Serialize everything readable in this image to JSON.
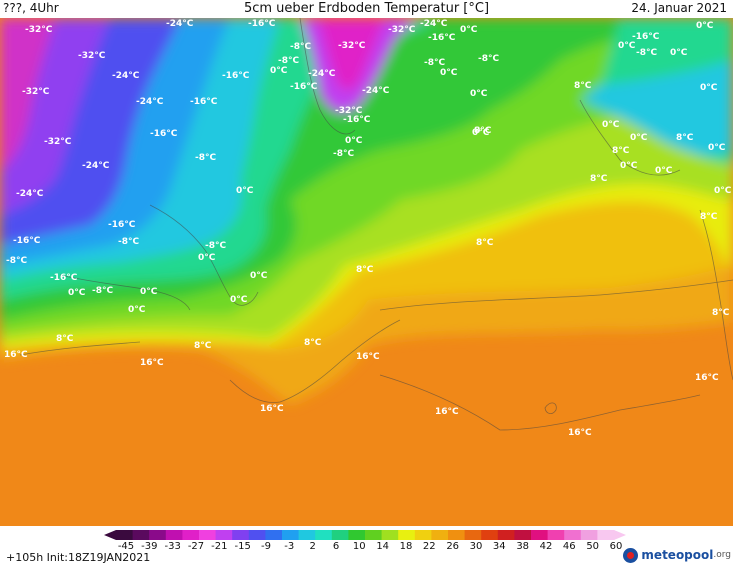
{
  "header": {
    "left": "???, 4Uhr",
    "title": "5cm ueber Erdboden Temperatur [°C]",
    "right": "24. Januar 2021"
  },
  "map_labels": {
    "m32": "-32°C",
    "m24": "-24°C",
    "m16": "-16°C",
    "m8": "-8°C",
    "z0": "0°C",
    "p8": "8°C",
    "p16": "16°C"
  },
  "colorbar": {
    "ticks": [
      "-45",
      "-39",
      "-33",
      "-27",
      "-21",
      "-15",
      "-9",
      "-3",
      "2",
      "6",
      "10",
      "14",
      "18",
      "22",
      "26",
      "30",
      "34",
      "38",
      "42",
      "46",
      "50",
      "60"
    ],
    "colors": [
      "#3a0a3e",
      "#5a0a5e",
      "#8a0a8a",
      "#c010b0",
      "#e020c8",
      "#f040e0",
      "#c040f0",
      "#8040f0",
      "#5050f0",
      "#3070f0",
      "#20a0f0",
      "#20c8e0",
      "#20e0c0",
      "#20d080",
      "#30c830",
      "#60d020",
      "#a0e020",
      "#e8f010",
      "#f0d010",
      "#f0b010",
      "#f09010",
      "#e86810",
      "#e04010",
      "#d02020",
      "#c01040",
      "#e01080",
      "#f040b0",
      "#f070d0",
      "#f0a0e0",
      "#f8c8f0"
    ]
  },
  "footer": {
    "run_info": "+105h Init:18Z19JAN2021",
    "brand_main": "meteopool",
    "brand_tld": ".org"
  }
}
